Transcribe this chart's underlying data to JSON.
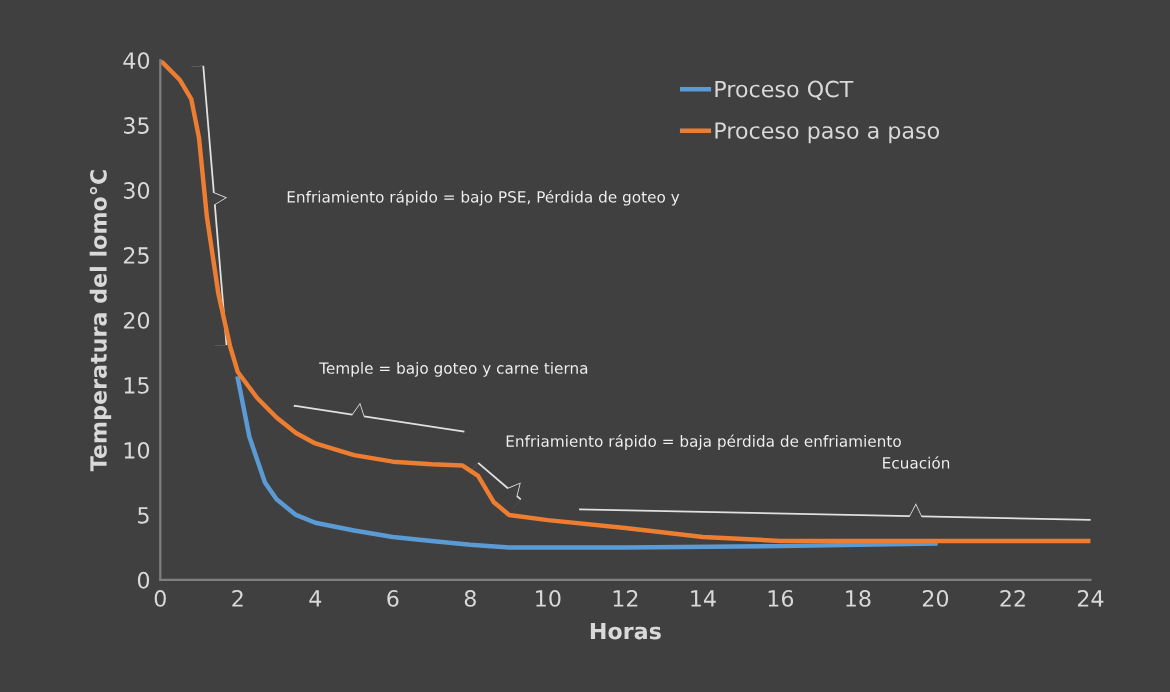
{
  "chart_data": {
    "type": "line",
    "xlabel": "Horas",
    "ylabel": "Temperatura del lomo°C",
    "xlim": [
      0,
      24
    ],
    "xticks": [
      0,
      2,
      4,
      6,
      8,
      10,
      12,
      14,
      16,
      18,
      20,
      22,
      24
    ],
    "ylim": [
      0,
      40
    ],
    "yticks": [
      0,
      5,
      10,
      15,
      20,
      25,
      30,
      35,
      40
    ],
    "grid": false,
    "legend": "top right",
    "marker": "none",
    "line_style": "solid",
    "series": [
      {
        "name": "Proceso QCT",
        "color": "#5b9bd5",
        "x": [
          2,
          2.3,
          2.7,
          3,
          3.5,
          4,
          5,
          6,
          7,
          8,
          9,
          10,
          12,
          16,
          20
        ],
        "values": [
          15.5,
          11,
          7.5,
          6.2,
          5,
          4.4,
          3.8,
          3.3,
          3,
          2.7,
          2.5,
          2.5,
          2.5,
          2.6,
          2.8
        ]
      },
      {
        "name": "Proceso paso a paso",
        "color": "#ed7d31",
        "x": [
          0,
          0.5,
          0.8,
          1,
          1.2,
          1.5,
          1.8,
          2,
          2.5,
          3,
          3.5,
          4,
          5,
          6,
          7,
          7.8,
          8.2,
          8.6,
          9,
          10,
          12,
          14,
          16,
          20,
          24
        ],
        "values": [
          40,
          38.5,
          37,
          34,
          28,
          22,
          18,
          16,
          14,
          12.5,
          11.3,
          10.5,
          9.6,
          9.1,
          8.9,
          8.8,
          8,
          6,
          5,
          4.6,
          4,
          3.3,
          3,
          3,
          3
        ]
      }
    ],
    "annotations": [
      "Enfriamiento rápido = bajo PSE, Pérdida de goteo y",
      "Temple = bajo goteo y carne tierna",
      "Enfriamiento rápido = baja pérdida de enfriamiento",
      "Ecuación"
    ]
  }
}
